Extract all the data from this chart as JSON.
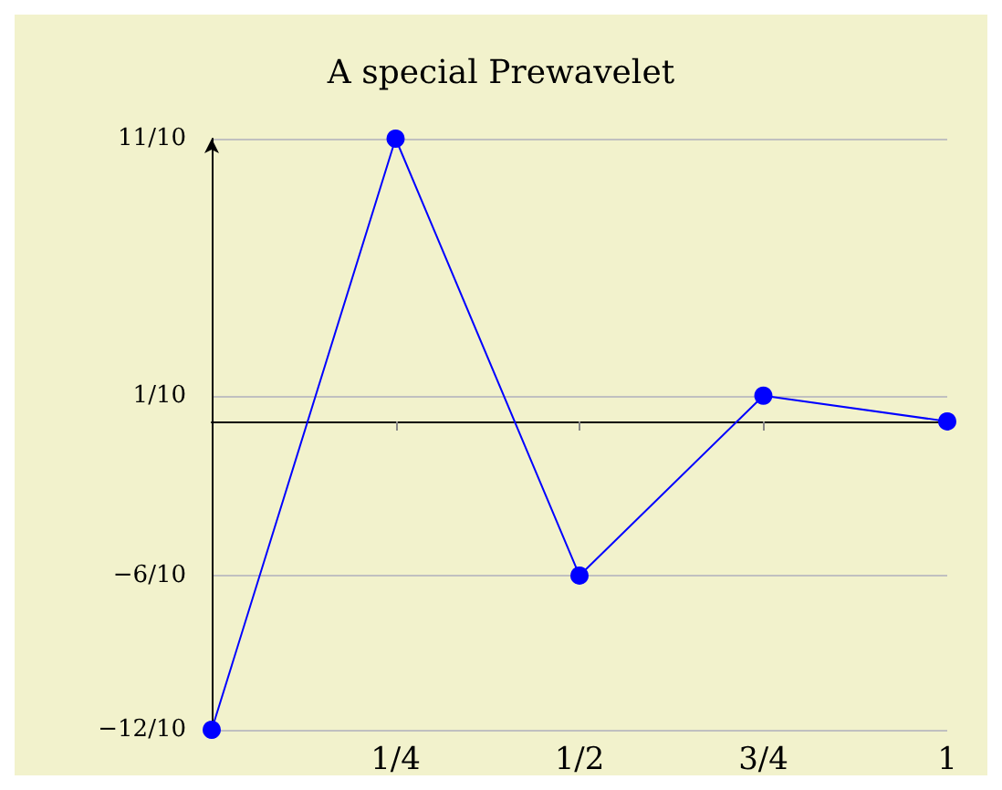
{
  "chart_data": {
    "type": "line",
    "title": "A special Prewavelet",
    "x": [
      0,
      0.25,
      0.5,
      0.75,
      1
    ],
    "series": [
      {
        "color": "#0000ff",
        "values": [
          -1.2,
          1.1,
          -0.6,
          0.1,
          0
        ]
      }
    ],
    "xlim": [
      0,
      1
    ],
    "ylim": [
      -1.2,
      1.1
    ],
    "xticks": [
      {
        "value": 0.25,
        "label": "1/4"
      },
      {
        "value": 0.5,
        "label": "1/2"
      },
      {
        "value": 0.75,
        "label": "3/4"
      },
      1
    ],
    "yticks": [
      {
        "value": -1.2,
        "label": "−12/10"
      },
      {
        "value": -0.6,
        "label": "−6/10"
      },
      {
        "value": 0.1,
        "label": "1/10"
      },
      {
        "value": 1.1,
        "label": "11/10"
      }
    ],
    "grid": "y",
    "marker": "circle",
    "line_style": "solid"
  }
}
